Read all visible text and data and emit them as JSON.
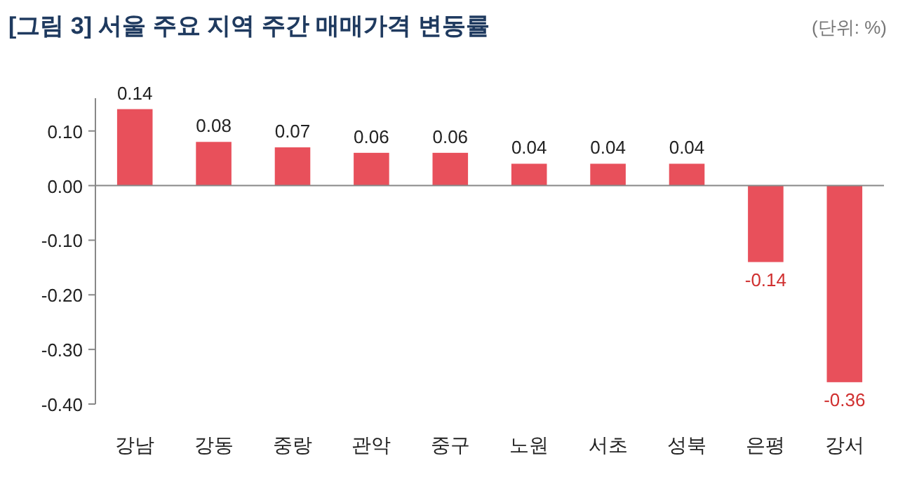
{
  "chart_data": {
    "type": "bar",
    "title": "[그림 3] 서울 주요 지역 주간 매매가격 변동률",
    "annotations": [
      "(단위: %)"
    ],
    "categories": [
      "강남",
      "강동",
      "중랑",
      "관악",
      "중구",
      "노원",
      "서초",
      "성북",
      "은평",
      "강서"
    ],
    "values": [
      0.14,
      0.08,
      0.07,
      0.06,
      0.06,
      0.04,
      0.04,
      0.04,
      -0.14,
      -0.36
    ],
    "value_labels": [
      "0.14",
      "0.08",
      "0.07",
      "0.06",
      "0.06",
      "0.04",
      "0.04",
      "0.04",
      "-0.14",
      "-0.36"
    ],
    "color": "#e8505b",
    "ylim": [
      -0.4,
      0.16
    ],
    "yticks": [
      {
        "value": -0.4,
        "label": "-0.40"
      },
      {
        "value": -0.3,
        "label": "-0.30"
      },
      {
        "value": -0.2,
        "label": "-0.20"
      },
      {
        "value": -0.1,
        "label": "-0.10"
      },
      {
        "value": 0,
        "label": "0.00"
      },
      {
        "value": 0.1,
        "label": "0.10"
      }
    ],
    "orientation": "vertical"
  }
}
